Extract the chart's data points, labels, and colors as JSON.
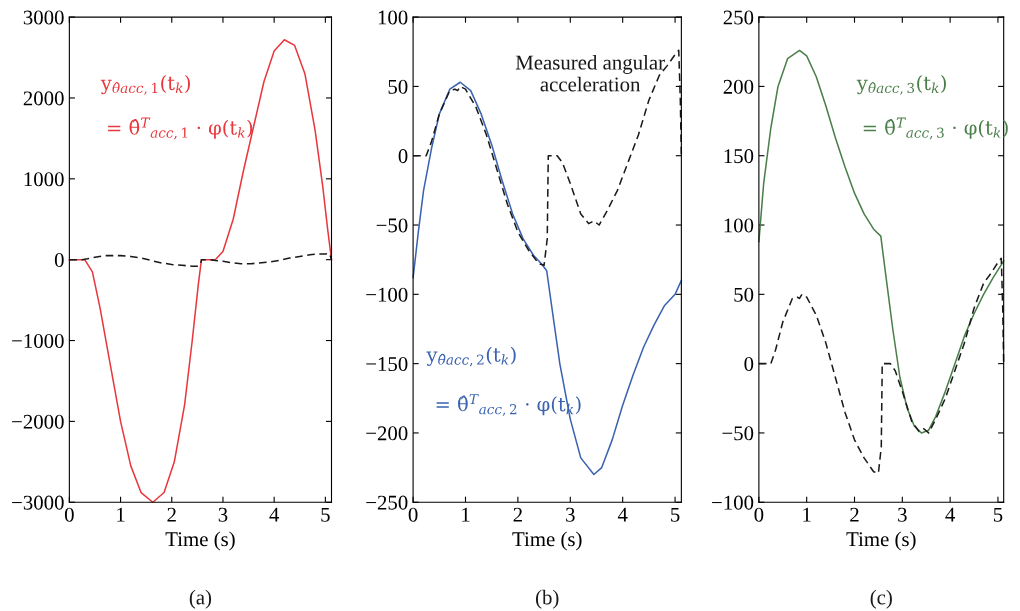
{
  "chart_data": [
    {
      "type": "line",
      "xlabel": "Time (s)",
      "xlim": [
        0,
        5.12
      ],
      "xticks": [
        0,
        1,
        2,
        3,
        4,
        5
      ],
      "ylim": [
        -3000,
        3000
      ],
      "yticks": [
        -3000,
        -2000,
        -1000,
        0,
        1000,
        2000,
        3000
      ],
      "annotations": [
        "y$_{θ̂acc,1}$(t$_{k}$)",
        "= θ̂$^{T}$$_{acc,1}$ · φ(t$_{k}$)",
        "(a)"
      ],
      "series": [
        {
          "color": "#e8383d",
          "line_style": "solid",
          "x": [
            0,
            0.3,
            0.45,
            0.6,
            0.8,
            1.0,
            1.2,
            1.4,
            1.63,
            1.85,
            2.05,
            2.25,
            2.4,
            2.52,
            2.58,
            2.85,
            3.0,
            3.2,
            3.4,
            3.6,
            3.8,
            4.0,
            4.2,
            4.4,
            4.6,
            4.8,
            4.95,
            5.05,
            5.12
          ],
          "values": [
            0,
            0,
            -150,
            -600,
            -1300,
            -2000,
            -2550,
            -2880,
            -3000,
            -2880,
            -2500,
            -1800,
            -1000,
            -300,
            0,
            0,
            100,
            500,
            1100,
            1650,
            2200,
            2580,
            2720,
            2650,
            2300,
            1600,
            900,
            350,
            0
          ]
        },
        {
          "color": "#1a1a1a",
          "line_style": "dashed",
          "x": [
            0,
            0.25,
            0.35,
            0.5,
            0.7,
            0.8,
            0.85,
            0.9,
            1.0,
            1.2,
            1.4,
            1.6,
            1.8,
            2.0,
            2.2,
            2.4,
            2.5,
            2.56,
            2.58,
            2.75,
            2.85,
            3.0,
            3.2,
            3.35,
            3.45,
            3.55,
            3.7,
            3.9,
            4.1,
            4.3,
            4.5,
            4.7,
            4.85,
            5.0,
            5.07,
            5.1,
            5.12
          ],
          "values": [
            0,
            0,
            10,
            30,
            50,
            50,
            50,
            50,
            50,
            40,
            20,
            -10,
            -40,
            -60,
            -70,
            -80,
            -80,
            -60,
            0,
            0,
            -10,
            -20,
            -40,
            -50,
            -50,
            -50,
            -40,
            -30,
            -10,
            20,
            40,
            60,
            70,
            70,
            80,
            40,
            0
          ]
        }
      ]
    },
    {
      "type": "line",
      "xlabel": "Time (s)",
      "xlim": [
        0,
        5.12
      ],
      "xticks": [
        0,
        1,
        2,
        3,
        4,
        5
      ],
      "ylim": [
        -250,
        100
      ],
      "yticks": [
        -250,
        -200,
        -150,
        -100,
        -50,
        0,
        50,
        100
      ],
      "annotations": [
        "y$_{θ̂acc,2}$(t$_{k}$)",
        "= θ̂$^{T}$$_{acc,2}$ · φ(t$_{k}$)",
        "(b)",
        "Measured angular\nacceleration"
      ],
      "series": [
        {
          "color": "#3a62b0",
          "line_style": "solid",
          "x": [
            0,
            0.1,
            0.2,
            0.35,
            0.5,
            0.7,
            0.9,
            1.1,
            1.3,
            1.5,
            1.7,
            1.9,
            2.1,
            2.3,
            2.45,
            2.55,
            2.65,
            2.8,
            3.0,
            3.2,
            3.45,
            3.6,
            3.8,
            4.0,
            4.2,
            4.4,
            4.6,
            4.8,
            5.0,
            5.12
          ],
          "values": [
            -88,
            -55,
            -25,
            5,
            30,
            48,
            53,
            47,
            30,
            8,
            -18,
            -42,
            -60,
            -72,
            -78,
            -83,
            -110,
            -150,
            -190,
            -218,
            -230,
            -225,
            -205,
            -180,
            -158,
            -138,
            -122,
            -108,
            -100,
            -90
          ]
        },
        {
          "color": "#1a1a1a",
          "line_style": "dashed",
          "x": [
            0,
            0.25,
            0.35,
            0.5,
            0.7,
            0.8,
            0.85,
            0.9,
            1.0,
            1.2,
            1.4,
            1.6,
            1.8,
            2.0,
            2.2,
            2.4,
            2.5,
            2.56,
            2.58,
            2.75,
            2.85,
            3.0,
            3.2,
            3.35,
            3.45,
            3.55,
            3.7,
            3.9,
            4.1,
            4.3,
            4.5,
            4.7,
            4.85,
            5.0,
            5.07,
            5.1,
            5.12
          ],
          "values": [
            0,
            0,
            10,
            30,
            47,
            48,
            47,
            50,
            48,
            35,
            15,
            -10,
            -35,
            -55,
            -68,
            -78,
            -79,
            -60,
            0,
            0,
            -5,
            -20,
            -42,
            -49,
            -47,
            -50,
            -40,
            -25,
            -5,
            15,
            40,
            58,
            65,
            73,
            76,
            40,
            0
          ]
        }
      ]
    },
    {
      "type": "line",
      "xlabel": "Time (s)",
      "xlim": [
        0,
        5.12
      ],
      "xticks": [
        0,
        1,
        2,
        3,
        4,
        5
      ],
      "ylim": [
        -100,
        250
      ],
      "yticks": [
        -100,
        -50,
        0,
        50,
        100,
        150,
        200,
        250
      ],
      "annotations": [
        "y$_{θ̂acc,3}$(t$_{k}$)",
        "= θ̂$^{T}$$_{acc,3}$ · φ(t$_{k}$)",
        "(c)"
      ],
      "series": [
        {
          "color": "#4a7f4a",
          "line_style": "solid",
          "x": [
            0,
            0.1,
            0.25,
            0.4,
            0.6,
            0.85,
            1.0,
            1.2,
            1.4,
            1.6,
            1.8,
            2.0,
            2.2,
            2.4,
            2.55,
            2.65,
            2.8,
            2.95,
            3.1,
            3.25,
            3.4,
            3.55,
            3.7,
            3.9,
            4.1,
            4.3,
            4.5,
            4.7,
            4.9,
            5.12
          ],
          "values": [
            88,
            130,
            170,
            200,
            220,
            226,
            222,
            207,
            186,
            163,
            142,
            123,
            108,
            97,
            92,
            65,
            25,
            -10,
            -32,
            -45,
            -50,
            -48,
            -38,
            -20,
            0,
            20,
            36,
            50,
            62,
            74
          ]
        },
        {
          "color": "#1a1a1a",
          "line_style": "dashed",
          "x": [
            0,
            0.25,
            0.35,
            0.5,
            0.7,
            0.8,
            0.85,
            0.9,
            1.0,
            1.2,
            1.4,
            1.6,
            1.8,
            2.0,
            2.2,
            2.4,
            2.5,
            2.56,
            2.58,
            2.75,
            2.85,
            3.0,
            3.2,
            3.35,
            3.45,
            3.55,
            3.7,
            3.9,
            4.1,
            4.3,
            4.5,
            4.7,
            4.85,
            5.0,
            5.07,
            5.1,
            5.12
          ],
          "values": [
            0,
            0,
            10,
            30,
            47,
            48,
            47,
            50,
            48,
            35,
            15,
            -10,
            -35,
            -55,
            -68,
            -78,
            -79,
            -60,
            0,
            0,
            -5,
            -20,
            -42,
            -49,
            -47,
            -50,
            -40,
            -25,
            -5,
            15,
            40,
            58,
            65,
            73,
            76,
            40,
            0
          ]
        }
      ]
    }
  ]
}
